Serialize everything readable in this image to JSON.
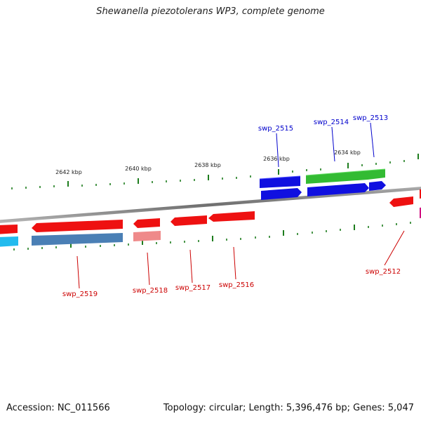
{
  "title": "Shewanella piezotolerans WP3, complete genome",
  "footer": {
    "accession": "Accession: NC_011566",
    "summary": "Topology: circular; Length: 5,396,476 bp; Genes: 5,047"
  },
  "colors": {
    "backbone": "#8a8a8a",
    "tick": "#1e7d1e",
    "forward_label": "#0000cc",
    "reverse_label": "#cc0000",
    "gene_red": "#ee1111",
    "gene_pink": "#ef8a8a",
    "gene_blue": "#1010e0",
    "gene_green": "#33bb33",
    "gene_cyan": "#22bbee",
    "gene_steel": "#4a7fb5"
  },
  "scale_labels": [
    {
      "text": "2642 kbp",
      "position_kbp": 2642
    },
    {
      "text": "2640 kbp",
      "position_kbp": 2640
    },
    {
      "text": "2638 kbp",
      "position_kbp": 2638
    },
    {
      "text": "2636 kbp",
      "position_kbp": 2636
    },
    {
      "text": "2634 kbp",
      "position_kbp": 2634
    }
  ],
  "gene_labels": [
    {
      "text": "swp_2515",
      "strand": "forward"
    },
    {
      "text": "swp_2514",
      "strand": "forward"
    },
    {
      "text": "swp_2513",
      "strand": "forward"
    },
    {
      "text": "swp_2512",
      "strand": "reverse"
    },
    {
      "text": "swp_2516",
      "strand": "reverse"
    },
    {
      "text": "swp_2517",
      "strand": "reverse"
    },
    {
      "text": "swp_2518",
      "strand": "reverse"
    },
    {
      "text": "swp_2519",
      "strand": "reverse"
    }
  ]
}
